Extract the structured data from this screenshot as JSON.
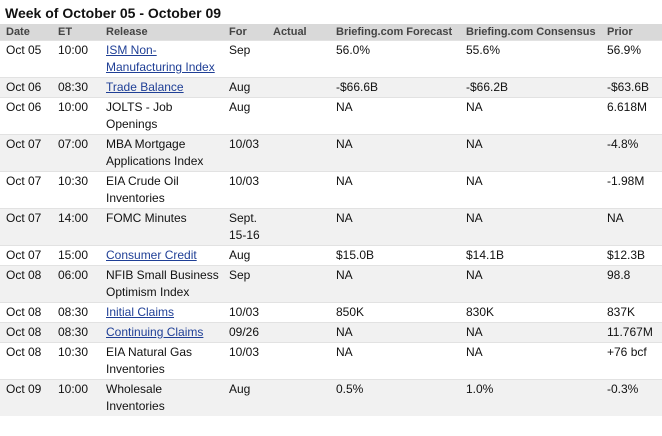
{
  "header": {
    "title": "Week of October 05 - October 09"
  },
  "table": {
    "columns": [
      "Date",
      "ET",
      "Release",
      "For",
      "Actual",
      "Briefing.com Forecast",
      "Briefing.com Consensus",
      "Prior"
    ],
    "rows": [
      {
        "date": "Oct 05",
        "et": "10:00",
        "release": "ISM Non-Manufacturing Index",
        "link": true,
        "for": "Sep",
        "forecast": "56.0%",
        "consensus": "55.6%",
        "prior": "56.9%"
      },
      {
        "date": "Oct 06",
        "et": "08:30",
        "release": "Trade Balance",
        "link": true,
        "for": "Aug",
        "forecast": "-$66.6B",
        "consensus": "-$66.2B",
        "prior": "-$63.6B"
      },
      {
        "date": "Oct 06",
        "et": "10:00",
        "release": "JOLTS - Job Openings",
        "link": false,
        "for": "Aug",
        "forecast": "NA",
        "consensus": "NA",
        "prior": "6.618M"
      },
      {
        "date": "Oct 07",
        "et": "07:00",
        "release": "MBA Mortgage Applications Index",
        "link": false,
        "for": "10/03",
        "forecast": "NA",
        "consensus": "NA",
        "prior": "-4.8%"
      },
      {
        "date": "Oct 07",
        "et": "10:30",
        "release": "EIA Crude Oil Inventories",
        "link": false,
        "for": "10/03",
        "forecast": "NA",
        "consensus": "NA",
        "prior": "-1.98M"
      },
      {
        "date": "Oct 07",
        "et": "14:00",
        "release": "FOMC Minutes",
        "link": false,
        "for": "Sept. 15-16",
        "forecast": "NA",
        "consensus": "NA",
        "prior": "NA"
      },
      {
        "date": "Oct 07",
        "et": "15:00",
        "release": "Consumer Credit",
        "link": true,
        "for": "Aug",
        "forecast": "$15.0B",
        "consensus": "$14.1B",
        "prior": "$12.3B"
      },
      {
        "date": "Oct 08",
        "et": "06:00",
        "release": "NFIB Small Business Optimism Index",
        "link": false,
        "for": "Sep",
        "forecast": "NA",
        "consensus": "NA",
        "prior": "98.8"
      },
      {
        "date": "Oct 08",
        "et": "08:30",
        "release": "Initial Claims",
        "link": true,
        "for": "10/03",
        "forecast": "850K",
        "consensus": "830K",
        "prior": "837K"
      },
      {
        "date": "Oct 08",
        "et": "08:30",
        "release": "Continuing Claims",
        "link": true,
        "for": "09/26",
        "forecast": "NA",
        "consensus": "NA",
        "prior": "11.767M"
      },
      {
        "date": "Oct 08",
        "et": "10:30",
        "release": "EIA Natural Gas Inventories",
        "link": false,
        "for": "10/03",
        "forecast": "NA",
        "consensus": "NA",
        "prior": "+76 bcf"
      },
      {
        "date": "Oct 09",
        "et": "10:00",
        "release": "Wholesale Inventories",
        "link": false,
        "for": "Aug",
        "forecast": "0.5%",
        "consensus": "1.0%",
        "prior": "-0.3%"
      }
    ]
  }
}
